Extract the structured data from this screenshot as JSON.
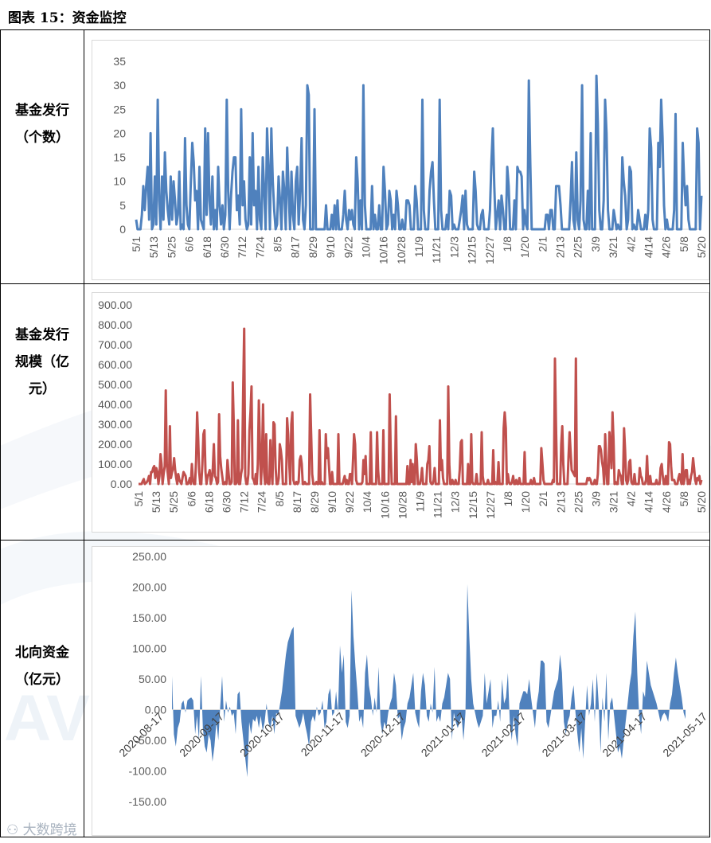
{
  "title": "图表 15：资金监控",
  "rows": [
    {
      "label_lines": [
        "基金发行",
        "（个数）"
      ]
    },
    {
      "label_lines": [
        "基金发行",
        "规模（亿",
        "元）"
      ]
    },
    {
      "label_lines": [
        "北向资金",
        "（亿元）"
      ]
    }
  ],
  "watermark": "大数跨境",
  "chart_data": [
    {
      "type": "line",
      "color": "#4F81BD",
      "ylim": [
        0,
        35
      ],
      "yticks": [
        "0",
        "5",
        "10",
        "15",
        "20",
        "25",
        "30",
        "35"
      ],
      "xticks": [
        "5/1",
        "5/13",
        "5/25",
        "6/6",
        "6/18",
        "6/30",
        "7/12",
        "7/24",
        "8/5",
        "8/17",
        "8/29",
        "9/10",
        "9/22",
        "10/4",
        "10/16",
        "10/28",
        "11/9",
        "11/21",
        "12/3",
        "12/15",
        "12/27",
        "1/8",
        "1/20",
        "2/1",
        "2/13",
        "2/25",
        "3/9",
        "3/21",
        "4/2",
        "4/14",
        "4/26",
        "5/8",
        "5/20"
      ],
      "values": [
        2,
        0,
        0,
        0,
        3,
        9,
        4,
        9,
        13,
        2,
        20,
        0,
        1,
        11,
        1,
        27,
        6,
        0,
        11,
        2,
        16,
        8,
        4,
        1,
        11,
        2,
        10,
        6,
        1,
        3,
        12,
        0,
        1,
        0,
        19,
        5,
        1,
        0,
        10,
        18,
        14,
        6,
        8,
        0,
        13,
        2,
        1,
        0,
        21,
        3,
        20,
        6,
        1,
        11,
        0,
        4,
        0,
        13,
        5,
        1,
        5,
        0,
        3,
        27,
        8,
        0,
        7,
        12,
        15,
        15,
        4,
        7,
        1,
        25,
        5,
        10,
        2,
        0,
        1,
        15,
        1,
        20,
        5,
        8,
        0,
        13,
        2,
        0,
        15,
        8,
        0,
        21,
        13,
        0,
        21,
        10,
        4,
        0,
        1,
        11,
        6,
        0,
        12,
        8,
        0,
        17,
        8,
        0,
        12,
        3,
        0,
        10,
        13,
        1,
        8,
        19,
        2,
        0,
        5,
        30,
        28,
        0,
        0,
        0,
        25,
        0,
        0,
        0,
        0,
        0,
        0,
        0,
        5,
        0,
        0,
        0,
        3,
        0,
        5,
        0,
        6,
        0,
        0,
        0,
        3,
        8,
        2,
        0,
        4,
        2,
        4,
        1,
        0,
        15,
        10,
        0,
        6,
        0,
        30,
        5,
        0,
        0,
        0,
        0,
        9,
        0,
        3,
        0,
        0,
        5,
        0,
        0,
        13,
        8,
        0,
        1,
        8,
        6,
        0,
        3,
        0,
        8,
        5,
        0,
        0,
        2,
        0,
        0,
        6,
        6,
        5,
        0,
        0,
        0,
        9,
        6,
        0,
        0,
        0,
        27,
        4,
        0,
        0,
        0,
        8,
        12,
        14,
        6,
        0,
        0,
        0,
        27,
        4,
        0,
        0,
        0,
        3,
        0,
        8,
        7,
        0,
        1,
        0,
        0,
        0,
        2,
        4,
        7,
        0,
        8,
        1,
        0,
        0,
        0,
        0,
        12,
        8,
        1,
        0,
        0,
        3,
        4,
        0,
        0,
        0,
        0,
        4,
        14,
        21,
        9,
        0,
        3,
        6,
        0,
        7,
        4,
        0,
        0,
        13,
        9,
        0,
        0,
        0,
        6,
        0,
        13,
        12,
        12,
        11,
        0,
        4,
        1,
        0,
        31,
        14,
        0,
        0,
        0,
        0,
        0,
        0,
        0,
        0,
        0,
        0,
        3,
        3,
        0,
        4,
        4,
        0,
        0,
        9,
        9,
        9,
        5,
        0,
        0,
        0,
        0,
        0,
        0,
        6,
        14,
        2,
        0,
        16,
        2,
        0,
        6,
        30,
        2,
        0,
        0,
        8,
        0,
        20,
        0,
        0,
        0,
        32,
        22,
        4,
        0,
        0,
        6,
        27,
        20,
        4,
        0,
        0,
        0,
        4,
        2,
        0,
        1,
        0,
        0,
        15,
        10,
        7,
        0,
        2,
        13,
        12,
        0,
        1,
        0,
        0,
        4,
        2,
        0,
        0,
        0,
        3,
        0,
        4,
        21,
        17,
        2,
        0,
        0,
        0,
        18,
        13,
        27,
        19,
        5,
        0,
        2,
        0,
        0,
        0,
        0,
        4,
        24,
        0,
        0,
        0,
        0,
        18,
        10,
        5,
        9,
        2,
        0,
        0,
        0,
        0,
        0,
        21,
        18,
        0,
        7
      ]
    },
    {
      "type": "line",
      "color": "#C0504D",
      "ylim": [
        0,
        900
      ],
      "yticks": [
        "0.00",
        "100.00",
        "200.00",
        "300.00",
        "400.00",
        "500.00",
        "600.00",
        "700.00",
        "800.00",
        "900.00"
      ],
      "xticks": [
        "5/1",
        "5/13",
        "5/25",
        "6/6",
        "6/18",
        "6/30",
        "7/12",
        "7/24",
        "8/5",
        "8/17",
        "8/29",
        "9/10",
        "9/22",
        "10/4",
        "10/16",
        "10/28",
        "11/9",
        "11/21",
        "12/3",
        "12/15",
        "12/27",
        "1/8",
        "1/20",
        "2/1",
        "2/13",
        "2/25",
        "3/9",
        "3/21",
        "4/2",
        "4/14",
        "4/26",
        "5/8",
        "5/20"
      ],
      "values": [
        0,
        0,
        0,
        0,
        15,
        25,
        0,
        5,
        10,
        20,
        40,
        0,
        60,
        60,
        80,
        90,
        30,
        80,
        60,
        0,
        40,
        150,
        100,
        0,
        50,
        90,
        470,
        100,
        50,
        0,
        290,
        30,
        60,
        80,
        130,
        70,
        30,
        0,
        50,
        20,
        10,
        0,
        30,
        60,
        50,
        40,
        0,
        0,
        10,
        30,
        0,
        100,
        20,
        0,
        0,
        120,
        360,
        230,
        60,
        0,
        0,
        100,
        250,
        270,
        60,
        0,
        40,
        50,
        70,
        0,
        20,
        80,
        200,
        40,
        30,
        0,
        10,
        350,
        140,
        80,
        40,
        0,
        0,
        10,
        0,
        120,
        60,
        0,
        0,
        10,
        510,
        300,
        0,
        0,
        10,
        320,
        0,
        0,
        50,
        80,
        460,
        780,
        40,
        0,
        0,
        50,
        270,
        360,
        490,
        30,
        20,
        0,
        50,
        0,
        100,
        420,
        200,
        0,
        140,
        400,
        60,
        0,
        250,
        10,
        0,
        0,
        220,
        70,
        0,
        310,
        300,
        80,
        0,
        0,
        30,
        200,
        170,
        120,
        0,
        0,
        0,
        0,
        330,
        250,
        110,
        0,
        300,
        360,
        20,
        0,
        0,
        10,
        0,
        10,
        120,
        140,
        100,
        0,
        0,
        10,
        0,
        0,
        0,
        0,
        450,
        250,
        50,
        0,
        0,
        0,
        10,
        0,
        0,
        270,
        0,
        10,
        0,
        0,
        0,
        250,
        130,
        180,
        90,
        0,
        0,
        60,
        0,
        0,
        0,
        0,
        0,
        250,
        0,
        0,
        0,
        0,
        20,
        40,
        0,
        20,
        0,
        0,
        50,
        50,
        0,
        120,
        250,
        200,
        20,
        0,
        0,
        0,
        0,
        0,
        10,
        120,
        50,
        140,
        0,
        0,
        0,
        0,
        260,
        0,
        0,
        0,
        0,
        0,
        260,
        70,
        0,
        0,
        0,
        0,
        270,
        0,
        0,
        0,
        0,
        0,
        450,
        170,
        0,
        0,
        0,
        0,
        340,
        0,
        0,
        0,
        0,
        0,
        0,
        0,
        0,
        0,
        0,
        90,
        0,
        0,
        120,
        10,
        100,
        0,
        0,
        200,
        120,
        0,
        0,
        0,
        30,
        80,
        0,
        0,
        0,
        0,
        100,
        120,
        190,
        10,
        0,
        0,
        20,
        80,
        0,
        0,
        0,
        0,
        320,
        70,
        120,
        30,
        0,
        0,
        0,
        0,
        490,
        100,
        0,
        0,
        20,
        0,
        0,
        20,
        0,
        0,
        0,
        70,
        210,
        220,
        0,
        0,
        0,
        0,
        0,
        100,
        0,
        0,
        250,
        10,
        0,
        0,
        0,
        50,
        0,
        0,
        0,
        0,
        260,
        40,
        0,
        0,
        0,
        0,
        20,
        0,
        0,
        0,
        0,
        170,
        0,
        10,
        0,
        0,
        110,
        0,
        0,
        0,
        0,
        280,
        360,
        280,
        0,
        50,
        10,
        0,
        0,
        10,
        40,
        0,
        0,
        20,
        0,
        0,
        30,
        0,
        0,
        0,
        0,
        160,
        0,
        0,
        0,
        0,
        0,
        20,
        0,
        0,
        30,
        0,
        0,
        0,
        0,
        0,
        0,
        180,
        100,
        20,
        0,
        0,
        0,
        0,
        0,
        0,
        0,
        0,
        20,
        10,
        630,
        300,
        0,
        0,
        0,
        0,
        200,
        290,
        100,
        0,
        0,
        0,
        0,
        140,
        260,
        160,
        70,
        60,
        50,
        40,
        630,
        0,
        0,
        0,
        0,
        0,
        0,
        0,
        0,
        0,
        0,
        30,
        20,
        30,
        20,
        0,
        0,
        0,
        20,
        0,
        0,
        50,
        190,
        190,
        170,
        110,
        80,
        0,
        250,
        100,
        0,
        0,
        260,
        180,
        80,
        360,
        220,
        0,
        10,
        0,
        0,
        70,
        50,
        40,
        0,
        0,
        280,
        170,
        20,
        0,
        20,
        110,
        120,
        10,
        0,
        0,
        50,
        0,
        0,
        0,
        0,
        80,
        40,
        30,
        0,
        0,
        0,
        20,
        140,
        0,
        0,
        40,
        0,
        0,
        0,
        0,
        0,
        20,
        0,
        0,
        0,
        80,
        100,
        40,
        0,
        0,
        40,
        0,
        0,
        210,
        200,
        90,
        20,
        20,
        20,
        0,
        0,
        0,
        30,
        50,
        20,
        0,
        150,
        0,
        30,
        70,
        70,
        0,
        20,
        0,
        40,
        60,
        130,
        80,
        20,
        0,
        30,
        20,
        40,
        0,
        20
      ],
      "peaks": []
    },
    {
      "type": "area",
      "color": "#4F81BD",
      "ylim": [
        -150,
        250
      ],
      "yticks": [
        "-150.00",
        "-100.00",
        "-50.00",
        "0.00",
        "50.00",
        "100.00",
        "150.00",
        "200.00",
        "250.00"
      ],
      "xticks": [
        "2020-08-17",
        "2020-09-17",
        "2020-10-17",
        "2020-11-17",
        "2020-12-17",
        "2021-01-17",
        "2021-02-17",
        "2021-03-17",
        "2021-04-17",
        "2021-05-17"
      ],
      "values": [
        55,
        -40,
        -60,
        -30,
        -20,
        10,
        15,
        -5,
        15,
        18,
        20,
        15,
        -40,
        -10,
        -50,
        55,
        -30,
        -60,
        -70,
        -40,
        -50,
        -85,
        -60,
        -20,
        -50,
        5,
        55,
        -20,
        15,
        -5,
        5,
        -10,
        -5,
        -40,
        25,
        30,
        -20,
        -50,
        -80,
        -110,
        -20,
        -40,
        -15,
        -20,
        -10,
        -30,
        -10,
        -35,
        -20,
        10,
        -20,
        -30,
        -10,
        -40,
        -5,
        -10,
        10,
        30,
        60,
        90,
        110,
        120,
        130,
        135,
        -10,
        -20,
        -30,
        -20,
        -5,
        -25,
        -40,
        -60,
        -20,
        -10,
        -20,
        5,
        -10,
        -5,
        15,
        -30,
        -20,
        25,
        35,
        -10,
        -5,
        30,
        -5,
        105,
        60,
        90,
        -20,
        -30,
        -10,
        195,
        120,
        70,
        30,
        -20,
        -10,
        -30,
        60,
        90,
        40,
        20,
        -10,
        20,
        -5,
        70,
        -20,
        -40,
        -20,
        -30,
        -5,
        10,
        20,
        60,
        40,
        -15,
        -10,
        -50,
        -30,
        -20,
        10,
        20,
        40,
        60,
        -5,
        -20,
        -30,
        30,
        60,
        40,
        -10,
        -20,
        10,
        -5,
        70,
        -20,
        -10,
        -20,
        10,
        20,
        40,
        60,
        50,
        -50,
        -5,
        -20,
        -30,
        -20,
        -10,
        -50,
        -5,
        205,
        120,
        50,
        10,
        -5,
        -20,
        -30,
        -20,
        -10,
        60,
        10,
        30,
        50,
        -30,
        -10,
        -10,
        15,
        -20,
        50,
        10,
        20,
        60,
        -20,
        -50,
        -10,
        -40,
        -60,
        10,
        20,
        30,
        30,
        25,
        50,
        20,
        -5,
        -30,
        10,
        30,
        80,
        80,
        75,
        -20,
        -30,
        -10,
        10,
        30,
        40,
        50,
        90,
        60,
        -20,
        -40,
        -20,
        -10,
        20,
        40,
        -5,
        -40,
        -70,
        -30,
        -80,
        -20,
        40,
        -10,
        10,
        50,
        -20,
        60,
        10,
        -70,
        20,
        -20,
        60,
        -50,
        10,
        20,
        -10,
        -40,
        -70,
        -60,
        -80,
        -50,
        -20,
        10,
        40,
        60,
        120,
        160,
        60,
        -10,
        -40,
        30,
        20,
        80,
        60,
        40,
        30,
        20,
        10,
        -5,
        -20,
        -10,
        -5,
        -10,
        -20,
        10,
        25,
        60,
        85,
        60,
        40,
        20,
        -5,
        -15
      ]
    }
  ]
}
